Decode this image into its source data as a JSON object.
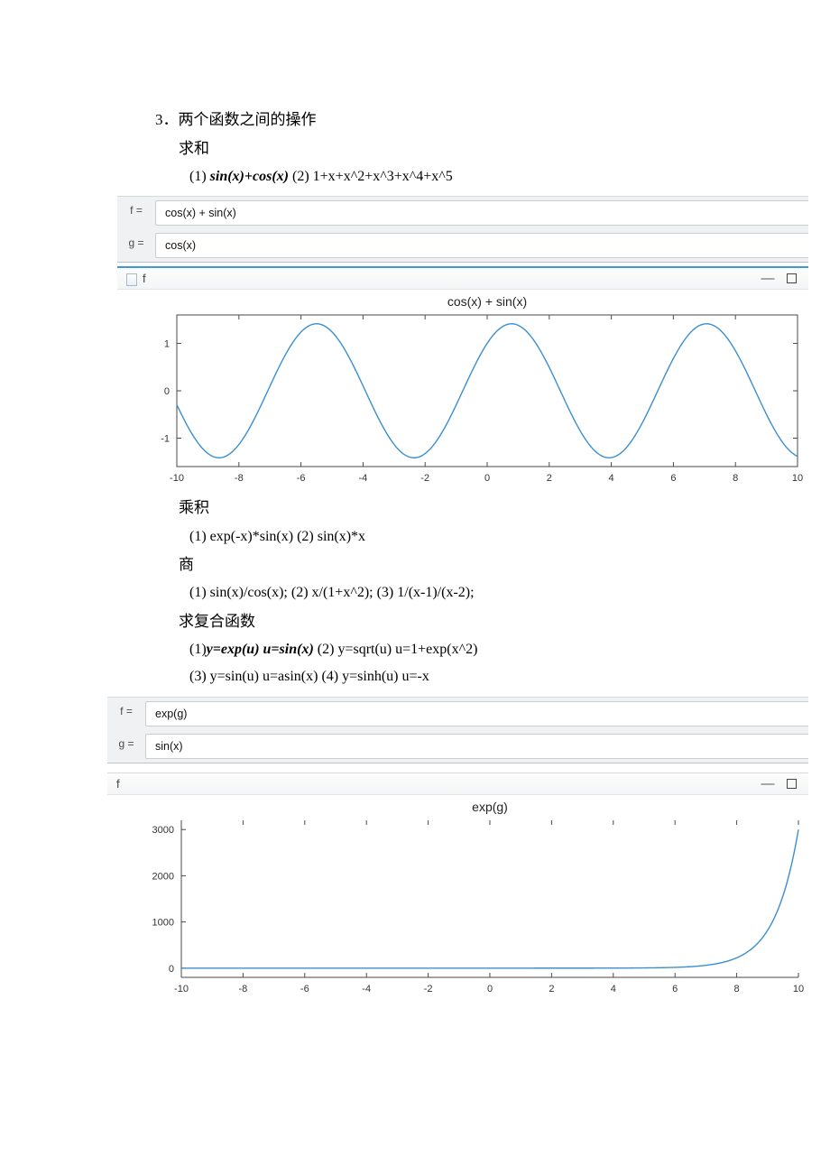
{
  "section_number": "3．",
  "section_title": "两个函数之间的操作",
  "sum_heading": "求和",
  "sum_item_prefix": "(1)  ",
  "sum_item_1": "sin(x)+cos(x)",
  "sum_item_2_prefix": " (2) ",
  "sum_item_2": "1+x+x^2+x^3+x^4+x^5",
  "panel1": {
    "f_label": "f =",
    "f_value": "cos(x) + sin(x)",
    "g_label": "g =",
    "g_value": "cos(x)"
  },
  "fig1": {
    "win_title": "f",
    "title": "cos(x) + sin(x)",
    "type": "line",
    "xlim": [
      -10,
      10
    ],
    "ylim": [
      -1.6,
      1.6
    ],
    "xticks": [
      -10,
      -8,
      -6,
      -4,
      -2,
      0,
      2,
      4,
      6,
      8,
      10
    ],
    "yticks": [
      -1,
      0,
      1
    ],
    "line_color": "#3b8fd0",
    "axis_color": "#4a4a4a",
    "tick_font": 11,
    "title_font": 14,
    "grid_color": "#d9dde1"
  },
  "product_heading": "乘积",
  "product_item": "(1)  exp(-x)*sin(x) (2) sin(x)*x",
  "quotient_heading": "商",
  "quotient_item": "(1)  sin(x)/cos(x); (2) x/(1+x^2); (3) 1/(x-1)/(x-2);",
  "composite_heading": "求复合函数",
  "composite_1_prefix": "(1)",
  "composite_1_bold": "y=exp(u) u=sin(x)",
  "composite_1_tail": " (2) y=sqrt(u) u=1+exp(x^2)",
  "composite_2": "(3) y=sin(u)    u=asin(x) (4) y=sinh(u) u=-x",
  "panel2": {
    "f_label": "f =",
    "f_value": "exp(g)",
    "g_label": "g =",
    "g_value": "sin(x)"
  },
  "fig2": {
    "win_title": "f",
    "title": "exp(g)",
    "type": "line",
    "xlim": [
      -10,
      10
    ],
    "ylim": [
      -200,
      3200
    ],
    "xticks": [
      -10,
      -8,
      -6,
      -4,
      -2,
      0,
      2,
      4,
      6,
      8,
      10
    ],
    "yticks": [
      0,
      1000,
      2000,
      3000
    ],
    "line_color": "#3b8fd0",
    "axis_color": "#4a4a4a",
    "tick_font": 11,
    "title_font": 14
  },
  "minimize_glyph": "—",
  "colors": {
    "panel_bg": "#eff1f3",
    "panel_border": "#c9ced3",
    "accent": "#3b99e0"
  }
}
